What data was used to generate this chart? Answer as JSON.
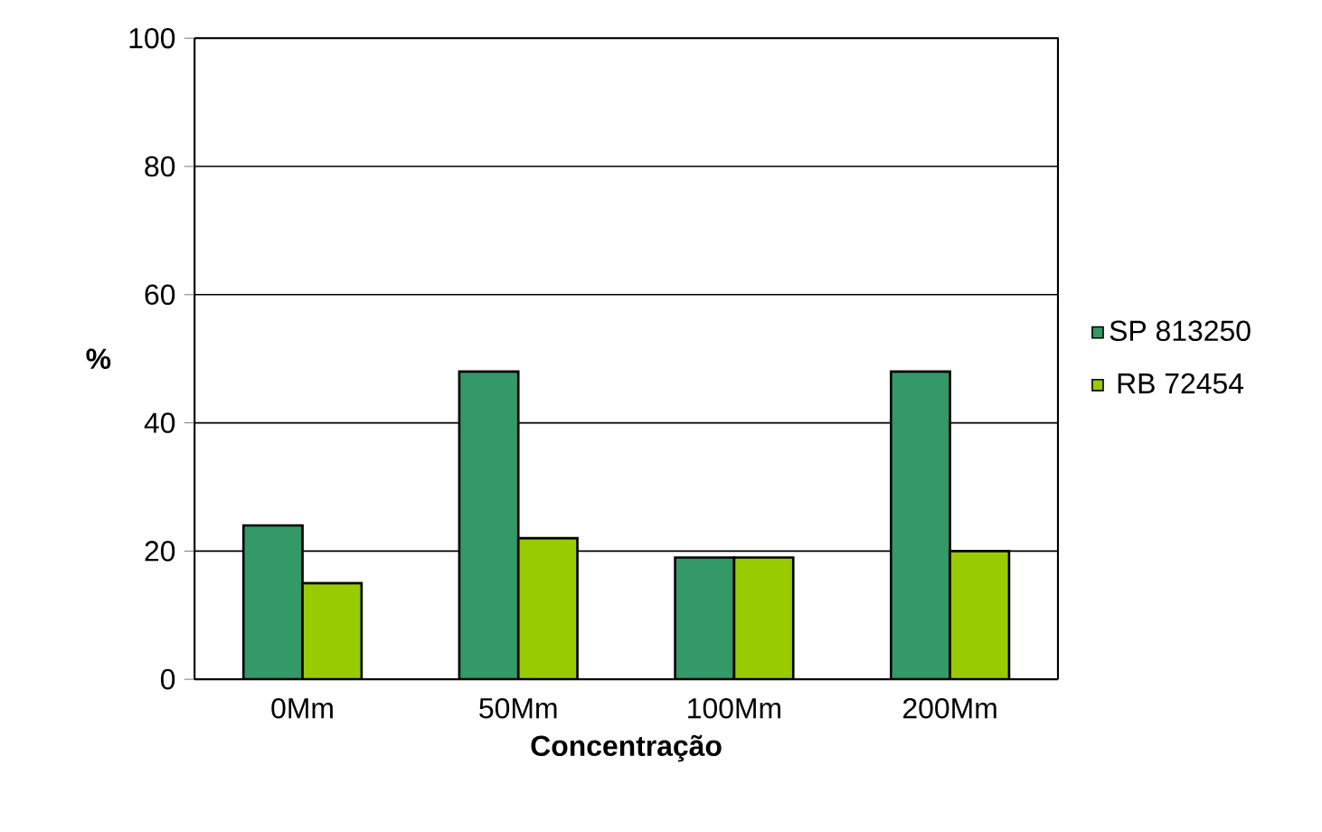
{
  "chart_data": {
    "type": "bar",
    "xlabel": "Concentração",
    "ylabel": "%",
    "categories": [
      "0Mm",
      "50Mm",
      "100Mm",
      "200Mm"
    ],
    "series": [
      {
        "name": "SP 813250",
        "color": "#339966",
        "values": [
          24,
          48,
          19,
          48
        ]
      },
      {
        "name": "RB 72454",
        "color": "#99cc00",
        "values": [
          15,
          22,
          19,
          20
        ]
      }
    ],
    "ylim": [
      0,
      100
    ],
    "yticks": [
      0,
      20,
      40,
      60,
      80,
      100
    ],
    "grid": "y",
    "legend": "right"
  }
}
